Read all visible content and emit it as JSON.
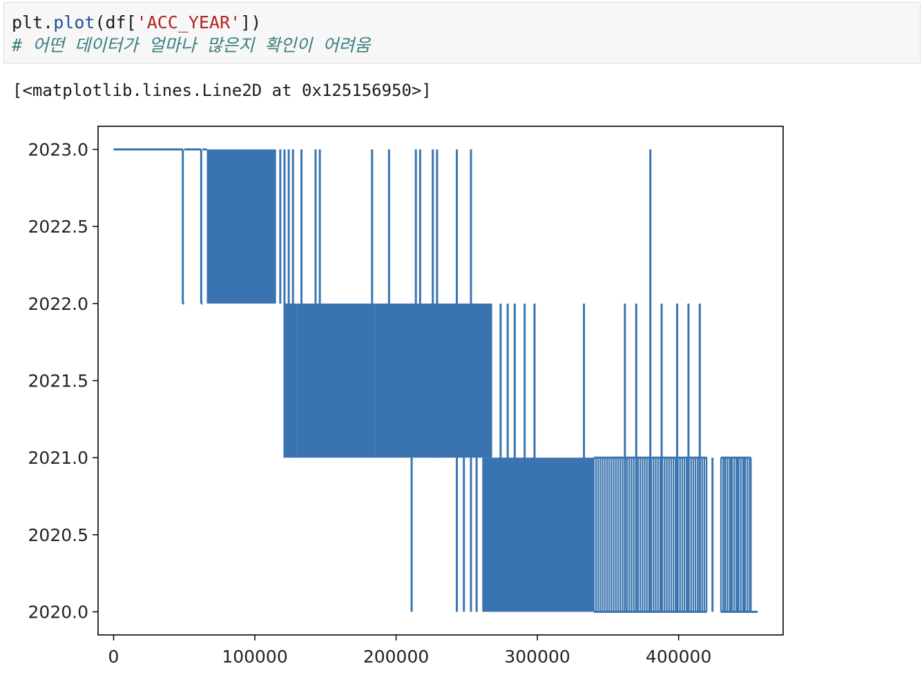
{
  "cell": {
    "code_plt": "plt",
    "code_dot": ".",
    "code_fn": "plot",
    "code_open": "(df[",
    "code_str": "'ACC_YEAR'",
    "code_close": "])",
    "comment": "# 어떤 데이터가 얼마나 많은지 확인이 어려움"
  },
  "output": {
    "text": "[<matplotlib.lines.Line2D at 0x125156950>]"
  },
  "chart_data": {
    "type": "line",
    "line_color": "#3a74b0",
    "xlim": [
      -11000,
      474000
    ],
    "ylim": [
      2019.85,
      2023.15
    ],
    "x_ticks": [
      0,
      100000,
      200000,
      300000,
      400000
    ],
    "x_tick_labels": [
      "0",
      "100000",
      "200000",
      "300000",
      "400000"
    ],
    "y_ticks": [
      2020.0,
      2020.5,
      2021.0,
      2021.5,
      2022.0,
      2022.5,
      2023.0
    ],
    "y_tick_labels": [
      "2020.0",
      "2020.5",
      "2021.0",
      "2021.5",
      "2022.0",
      "2022.5",
      "2023.0"
    ],
    "series": [
      {
        "segments": [
          {
            "x_from": 0,
            "x_to": 49000,
            "y": 2023.0
          },
          {
            "x_from": 49000,
            "x_to": 50000,
            "y": 2022.0
          },
          {
            "x_from": 50000,
            "x_to": 62000,
            "y": 2023.0
          },
          {
            "x_from": 62000,
            "x_to": 63000,
            "y": 2022.0
          },
          {
            "x_from": 63000,
            "x_to": 66000,
            "y": 2023.0
          }
        ],
        "dense_bands": [
          {
            "x_from": 66000,
            "x_to": 115000,
            "y_low": 2022.0,
            "y_high": 2023.0
          },
          {
            "x_from": 121000,
            "x_to": 130000,
            "y_low": 2021.0,
            "y_high": 2022.0
          },
          {
            "x_from": 130000,
            "x_to": 185000,
            "y_low": 2021.0,
            "y_high": 2022.0
          },
          {
            "x_from": 185000,
            "x_to": 268000,
            "y_low": 2021.0,
            "y_high": 2022.0
          },
          {
            "x_from": 261000,
            "x_to": 340000,
            "y_low": 2020.0,
            "y_high": 2021.0
          }
        ],
        "spikes": [
          {
            "x": 49000,
            "y_from": 2023.0,
            "y_to": 2022.0
          },
          {
            "x": 62000,
            "y_from": 2023.0,
            "y_to": 2022.0
          },
          {
            "x": 118000,
            "y_from": 2023.0,
            "y_to": 2022.0
          },
          {
            "x": 121000,
            "y_from": 2023.0,
            "y_to": 2021.0
          },
          {
            "x": 124000,
            "y_from": 2023.0,
            "y_to": 2021.0
          },
          {
            "x": 127000,
            "y_from": 2023.0,
            "y_to": 2021.0
          },
          {
            "x": 133000,
            "y_from": 2023.0,
            "y_to": 2022.0
          },
          {
            "x": 143000,
            "y_from": 2023.0,
            "y_to": 2022.0
          },
          {
            "x": 146000,
            "y_from": 2023.0,
            "y_to": 2022.0
          },
          {
            "x": 183000,
            "y_from": 2023.0,
            "y_to": 2021.0
          },
          {
            "x": 195000,
            "y_from": 2023.0,
            "y_to": 2021.0
          },
          {
            "x": 211000,
            "y_from": 2022.0,
            "y_to": 2020.0
          },
          {
            "x": 214000,
            "y_from": 2023.0,
            "y_to": 2021.0
          },
          {
            "x": 217000,
            "y_from": 2023.0,
            "y_to": 2021.0
          },
          {
            "x": 226000,
            "y_from": 2023.0,
            "y_to": 2021.0
          },
          {
            "x": 229000,
            "y_from": 2023.0,
            "y_to": 2021.0
          },
          {
            "x": 243000,
            "y_from": 2023.0,
            "y_to": 2020.0
          },
          {
            "x": 248000,
            "y_from": 2022.0,
            "y_to": 2020.0
          },
          {
            "x": 253000,
            "y_from": 2023.0,
            "y_to": 2020.0
          },
          {
            "x": 257000,
            "y_from": 2022.0,
            "y_to": 2020.0
          },
          {
            "x": 274000,
            "y_from": 2022.0,
            "y_to": 2020.0
          },
          {
            "x": 279000,
            "y_from": 2022.0,
            "y_to": 2020.0
          },
          {
            "x": 284000,
            "y_from": 2022.0,
            "y_to": 2020.0
          },
          {
            "x": 291000,
            "y_from": 2022.0,
            "y_to": 2020.0
          },
          {
            "x": 298000,
            "y_from": 2022.0,
            "y_to": 2020.0
          },
          {
            "x": 333000,
            "y_from": 2022.0,
            "y_to": 2020.0
          },
          {
            "x": 362000,
            "y_from": 2022.0,
            "y_to": 2020.0
          },
          {
            "x": 370000,
            "y_from": 2022.0,
            "y_to": 2020.0
          },
          {
            "x": 380000,
            "y_from": 2023.0,
            "y_to": 2020.0
          },
          {
            "x": 388000,
            "y_from": 2022.0,
            "y_to": 2020.0
          },
          {
            "x": 399000,
            "y_from": 2022.0,
            "y_to": 2020.0
          },
          {
            "x": 407000,
            "y_from": 2022.0,
            "y_to": 2020.0
          },
          {
            "x": 415000,
            "y_from": 2022.0,
            "y_to": 2020.0
          },
          {
            "x": 424000,
            "y_from": 2021.0,
            "y_to": 2020.0
          },
          {
            "x": 433000,
            "y_from": 2021.0,
            "y_to": 2020.0
          },
          {
            "x": 437000,
            "y_from": 2021.0,
            "y_to": 2020.0
          },
          {
            "x": 442000,
            "y_from": 2021.0,
            "y_to": 2020.0
          },
          {
            "x": 446000,
            "y_from": 2021.0,
            "y_to": 2020.0
          },
          {
            "x": 451000,
            "y_from": 2021.0,
            "y_to": 2020.0
          }
        ],
        "sparse_regions": [
          {
            "x_from": 340000,
            "x_to": 420000,
            "y_low": 2020.0,
            "y_high": 2021.0
          },
          {
            "x_from": 430000,
            "x_to": 451000,
            "y_low": 2020.0,
            "y_high": 2021.0
          }
        ],
        "tail": {
          "x_from": 451000,
          "x_to": 456000,
          "y": 2020.0
        }
      }
    ]
  }
}
